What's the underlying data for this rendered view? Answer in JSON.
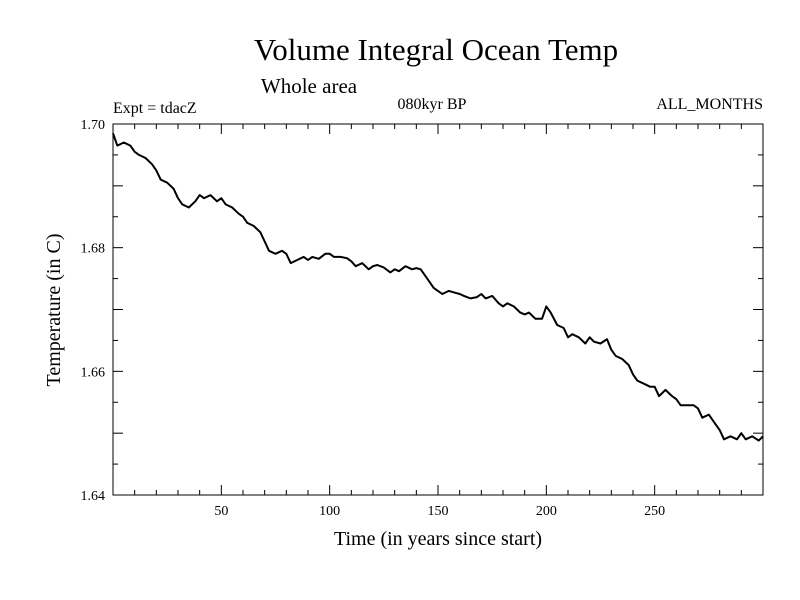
{
  "chart_data": {
    "type": "line",
    "title": "Volume Integral Ocean Temp",
    "subtitle": "Whole area",
    "experiment": "Expt = tdacZ",
    "period": "080kyr BP",
    "months": "ALL_MONTHS",
    "xlabel": "Time (in years since start)",
    "ylabel": "Temperature (in C)",
    "xlim": [
      0,
      300
    ],
    "ylim": [
      1.64,
      1.7
    ],
    "x_ticks": [
      50,
      100,
      150,
      200,
      250
    ],
    "x_tick_labels": [
      "50",
      "100",
      "150",
      "200",
      "250"
    ],
    "y_ticks": [
      1.64,
      1.66,
      1.68,
      1.7
    ],
    "y_tick_labels": [
      "1.64",
      "1.66",
      "1.68",
      "1.70"
    ],
    "grid": false,
    "series": [
      {
        "name": "Volume Integral Ocean Temp",
        "color": "#000000",
        "x": [
          0,
          2,
          5,
          8,
          10,
          12,
          15,
          18,
          20,
          22,
          25,
          28,
          30,
          32,
          35,
          38,
          40,
          42,
          45,
          48,
          50,
          52,
          55,
          58,
          60,
          62,
          65,
          68,
          70,
          72,
          75,
          78,
          80,
          82,
          85,
          88,
          90,
          92,
          95,
          98,
          100,
          102,
          105,
          108,
          110,
          112,
          115,
          118,
          120,
          122,
          125,
          128,
          130,
          132,
          135,
          138,
          140,
          142,
          145,
          148,
          150,
          152,
          155,
          158,
          160,
          162,
          165,
          168,
          170,
          172,
          175,
          178,
          180,
          182,
          185,
          188,
          190,
          192,
          195,
          198,
          200,
          202,
          205,
          208,
          210,
          212,
          215,
          218,
          220,
          222,
          225,
          228,
          230,
          232,
          235,
          238,
          240,
          242,
          245,
          248,
          250,
          252,
          255,
          258,
          260,
          262,
          265,
          268,
          270,
          272,
          275,
          278,
          280,
          282,
          285,
          288,
          290,
          292,
          295,
          298,
          300
        ],
        "values": [
          1.6985,
          1.6965,
          1.697,
          1.6965,
          1.6955,
          1.695,
          1.6945,
          1.6935,
          1.6925,
          1.691,
          1.6905,
          1.6895,
          1.688,
          1.687,
          1.6865,
          1.6875,
          1.6885,
          1.688,
          1.6885,
          1.6875,
          1.688,
          1.687,
          1.6865,
          1.6855,
          1.685,
          1.684,
          1.6835,
          1.6825,
          1.681,
          1.6795,
          1.679,
          1.6795,
          1.679,
          1.6775,
          1.678,
          1.6785,
          1.678,
          1.6785,
          1.6782,
          1.679,
          1.679,
          1.6785,
          1.6785,
          1.6783,
          1.6778,
          1.677,
          1.6775,
          1.6765,
          1.677,
          1.6772,
          1.6768,
          1.676,
          1.6765,
          1.6762,
          1.677,
          1.6765,
          1.6767,
          1.6765,
          1.675,
          1.6735,
          1.673,
          1.6725,
          1.673,
          1.6727,
          1.6725,
          1.6722,
          1.6718,
          1.672,
          1.6725,
          1.6718,
          1.6722,
          1.671,
          1.6705,
          1.671,
          1.6705,
          1.6695,
          1.6692,
          1.6695,
          1.6685,
          1.6685,
          1.6705,
          1.6695,
          1.6675,
          1.667,
          1.6655,
          1.666,
          1.6655,
          1.6645,
          1.6655,
          1.6648,
          1.6645,
          1.6652,
          1.6635,
          1.6625,
          1.662,
          1.661,
          1.6595,
          1.6585,
          1.658,
          1.6575,
          1.6575,
          1.656,
          1.657,
          1.656,
          1.6555,
          1.6545,
          1.6545,
          1.6545,
          1.654,
          1.6525,
          1.653,
          1.6515,
          1.6505,
          1.649,
          1.6495,
          1.649,
          1.65,
          1.649,
          1.6495,
          1.6488,
          1.6495
        ]
      }
    ]
  }
}
